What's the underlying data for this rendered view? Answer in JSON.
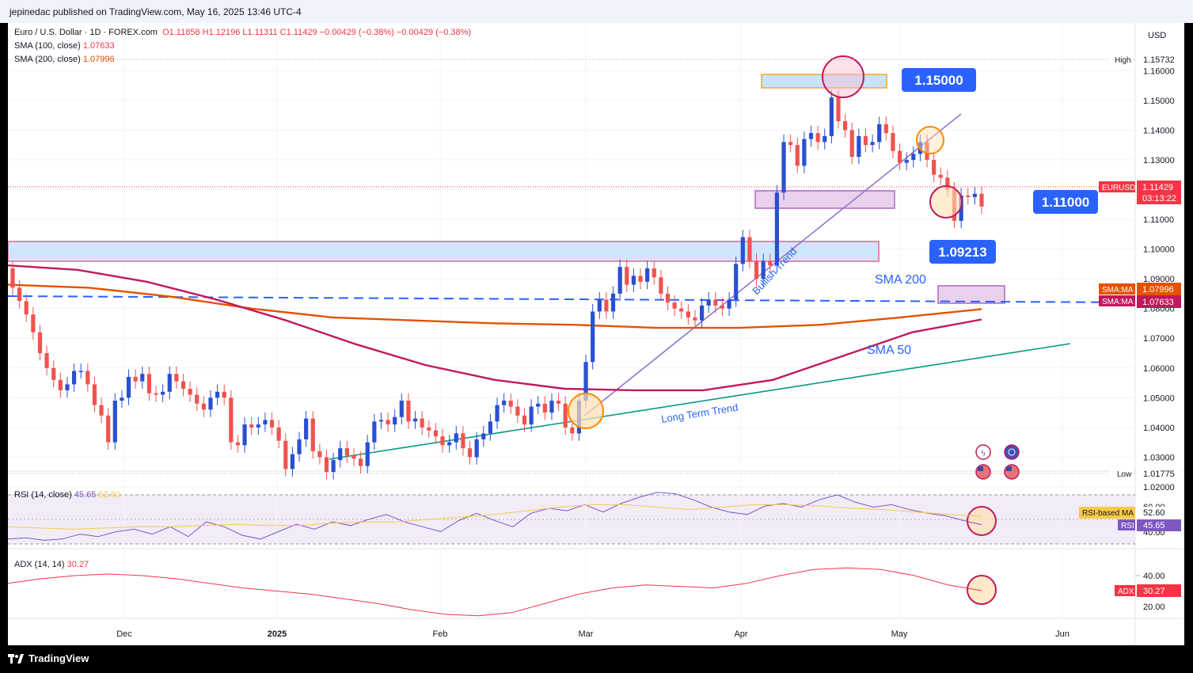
{
  "header": {
    "publisher_line": "jepinedac published on TradingView.com, May 16, 2025 13:46 UTC-4"
  },
  "footer": {
    "brand": "TradingView"
  },
  "legend": {
    "symbol_line_name": "Euro / U.S. Dollar · 1D · FOREX.com",
    "ohlc": "O1.11858  H1.12196  L1.11311  C1.11429  −0.00429 (−0.38%)  −0.00429 (−0.38%)",
    "sma100_label": "SMA (100, close)",
    "sma100_value": "1.07633",
    "sma200_label": "SMA (200, close)",
    "sma200_value": "1.07996",
    "rsi_label": "RSI (14, close)",
    "rsi_value": "45.65",
    "rsi_ma_value": "52.60",
    "adx_label": "ADX (14, 14)",
    "adx_value": "30.27"
  },
  "price_axis": {
    "currency": "USD",
    "ticks": [
      "1.16000",
      "1.15000",
      "1.14000",
      "1.13000",
      "1.12000",
      "1.11000",
      "1.10000",
      "1.09000",
      "1.08000",
      "1.07000",
      "1.06000",
      "1.05000",
      "1.04000",
      "1.03000",
      "1.02000"
    ],
    "high_label": "High",
    "high_value": "1.15732",
    "low_label": "Low",
    "low_value": "1.01775",
    "last_symbol": "EURUSD",
    "last_price": "1.11429",
    "countdown": "03:13:22",
    "sma_tag_1_label": "SMA:MA",
    "sma_tag_1_value": "1.07996",
    "sma_tag_2_label": "SMA:MA",
    "sma_tag_2_value": "1.07633"
  },
  "rsi_axis": {
    "ticks": [
      "60.00",
      "40.00"
    ],
    "ma_tag_label": "RSI-based MA",
    "ma_tag_value": "52.60",
    "rsi_tag_label": "RSI",
    "rsi_tag_value": "45.65"
  },
  "adx_axis": {
    "ticks": [
      "40.00",
      "20.00"
    ],
    "tag_label": "ADX",
    "tag_value": "30.27"
  },
  "time_axis": [
    "Dec",
    "2025",
    "Feb",
    "Mar",
    "Apr",
    "May",
    "Jun"
  ],
  "annotations": {
    "level_1150": "1.15000",
    "level_1110": "1.11000",
    "level_1092": "1.09213",
    "sma200": "SMA 200",
    "sma50": "SMA 50",
    "bullish_trend": "Bullish Trend",
    "long_term_trend": "Long Term Trend"
  },
  "colors": {
    "up": "#2a4fd1",
    "down": "#ef5350",
    "sma200": "#e65100",
    "sma100": "#c2185b",
    "trend_long": "#089981",
    "trend_bull": "#9575cd",
    "label_blue": "#2962ff",
    "rsi_line": "#7e57c2",
    "rsi_ma": "#f7c948",
    "adx": "#f23645"
  },
  "chart_data": {
    "type": "candlestick",
    "symbol": "EURUSD",
    "timeframe": "1D",
    "ylim": [
      1.015,
      1.162
    ],
    "x_months": [
      "Dec",
      "2025",
      "Feb",
      "Mar",
      "Apr",
      "May",
      "Jun"
    ],
    "candles_approx": [
      {
        "o": 1.0935,
        "c": 1.087
      },
      {
        "o": 1.087,
        "c": 1.0825
      },
      {
        "o": 1.0825,
        "c": 1.078
      },
      {
        "o": 1.078,
        "c": 1.072
      },
      {
        "o": 1.072,
        "c": 1.065
      },
      {
        "o": 1.065,
        "c": 1.06
      },
      {
        "o": 1.06,
        "c": 1.056
      },
      {
        "o": 1.056,
        "c": 1.0525
      },
      {
        "o": 1.0525,
        "c": 1.0545
      },
      {
        "o": 1.0545,
        "c": 1.059
      },
      {
        "o": 1.059,
        "c": 1.059
      },
      {
        "o": 1.059,
        "c": 1.0545
      },
      {
        "o": 1.0545,
        "c": 1.0475
      },
      {
        "o": 1.0475,
        "c": 1.044
      },
      {
        "o": 1.044,
        "c": 1.035
      },
      {
        "o": 1.035,
        "c": 1.049
      },
      {
        "o": 1.049,
        "c": 1.05
      },
      {
        "o": 1.05,
        "c": 1.057
      },
      {
        "o": 1.057,
        "c": 1.0555
      },
      {
        "o": 1.0555,
        "c": 1.058
      },
      {
        "o": 1.058,
        "c": 1.0515
      },
      {
        "o": 1.0515,
        "c": 1.051
      },
      {
        "o": 1.051,
        "c": 1.052
      },
      {
        "o": 1.052,
        "c": 1.058
      },
      {
        "o": 1.058,
        "c": 1.0555
      },
      {
        "o": 1.0555,
        "c": 1.053
      },
      {
        "o": 1.053,
        "c": 1.051
      },
      {
        "o": 1.051,
        "c": 1.048
      },
      {
        "o": 1.048,
        "c": 1.046
      },
      {
        "o": 1.046,
        "c": 1.05
      },
      {
        "o": 1.05,
        "c": 1.052
      },
      {
        "o": 1.052,
        "c": 1.05
      },
      {
        "o": 1.05,
        "c": 1.035
      },
      {
        "o": 1.035,
        "c": 1.034
      },
      {
        "o": 1.034,
        "c": 1.041
      },
      {
        "o": 1.041,
        "c": 1.04
      },
      {
        "o": 1.04,
        "c": 1.041
      },
      {
        "o": 1.041,
        "c": 1.0425
      },
      {
        "o": 1.0425,
        "c": 1.04
      },
      {
        "o": 1.04,
        "c": 1.0355
      },
      {
        "o": 1.0355,
        "c": 1.026
      },
      {
        "o": 1.026,
        "c": 1.031
      },
      {
        "o": 1.031,
        "c": 1.036
      },
      {
        "o": 1.036,
        "c": 1.043
      },
      {
        "o": 1.043,
        "c": 1.032
      },
      {
        "o": 1.032,
        "c": 1.03
      },
      {
        "o": 1.03,
        "c": 1.025
      },
      {
        "o": 1.025,
        "c": 1.029
      },
      {
        "o": 1.029,
        "c": 1.033
      },
      {
        "o": 1.033,
        "c": 1.0305
      },
      {
        "o": 1.0305,
        "c": 1.0295
      },
      {
        "o": 1.0295,
        "c": 1.027
      },
      {
        "o": 1.027,
        "c": 1.035
      },
      {
        "o": 1.035,
        "c": 1.042
      },
      {
        "o": 1.042,
        "c": 1.0425
      },
      {
        "o": 1.0425,
        "c": 1.041
      },
      {
        "o": 1.041,
        "c": 1.0435
      },
      {
        "o": 1.0435,
        "c": 1.049
      },
      {
        "o": 1.049,
        "c": 1.042
      },
      {
        "o": 1.042,
        "c": 1.043
      },
      {
        "o": 1.043,
        "c": 1.04
      },
      {
        "o": 1.04,
        "c": 1.039
      },
      {
        "o": 1.039,
        "c": 1.037
      },
      {
        "o": 1.037,
        "c": 1.034
      },
      {
        "o": 1.034,
        "c": 1.035
      },
      {
        "o": 1.035,
        "c": 1.038
      },
      {
        "o": 1.038,
        "c": 1.033
      },
      {
        "o": 1.033,
        "c": 1.03
      },
      {
        "o": 1.03,
        "c": 1.036
      },
      {
        "o": 1.036,
        "c": 1.038
      },
      {
        "o": 1.038,
        "c": 1.042
      },
      {
        "o": 1.042,
        "c": 1.0475
      },
      {
        "o": 1.0475,
        "c": 1.049
      },
      {
        "o": 1.049,
        "c": 1.047
      },
      {
        "o": 1.047,
        "c": 1.044
      },
      {
        "o": 1.044,
        "c": 1.041
      },
      {
        "o": 1.041,
        "c": 1.047
      },
      {
        "o": 1.047,
        "c": 1.048
      },
      {
        "o": 1.048,
        "c": 1.045
      },
      {
        "o": 1.045,
        "c": 1.049
      },
      {
        "o": 1.049,
        "c": 1.048
      },
      {
        "o": 1.048,
        "c": 1.04
      },
      {
        "o": 1.04,
        "c": 1.038
      },
      {
        "o": 1.038,
        "c": 1.049
      },
      {
        "o": 1.049,
        "c": 1.062
      },
      {
        "o": 1.062,
        "c": 1.079
      },
      {
        "o": 1.079,
        "c": 1.083
      },
      {
        "o": 1.083,
        "c": 1.079
      },
      {
        "o": 1.079,
        "c": 1.085
      },
      {
        "o": 1.085,
        "c": 1.094
      },
      {
        "o": 1.094,
        "c": 1.088
      },
      {
        "o": 1.088,
        "c": 1.091
      },
      {
        "o": 1.091,
        "c": 1.089
      },
      {
        "o": 1.089,
        "c": 1.0935
      },
      {
        "o": 1.0935,
        "c": 1.0905
      },
      {
        "o": 1.0905,
        "c": 1.085
      },
      {
        "o": 1.085,
        "c": 1.082
      },
      {
        "o": 1.082,
        "c": 1.08
      },
      {
        "o": 1.08,
        "c": 1.079
      },
      {
        "o": 1.079,
        "c": 1.077
      },
      {
        "o": 1.077,
        "c": 1.076
      },
      {
        "o": 1.076,
        "c": 1.081
      },
      {
        "o": 1.081,
        "c": 1.083
      },
      {
        "o": 1.083,
        "c": 1.081
      },
      {
        "o": 1.081,
        "c": 1.08
      },
      {
        "o": 1.08,
        "c": 1.083
      },
      {
        "o": 1.083,
        "c": 1.095
      },
      {
        "o": 1.095,
        "c": 1.104
      },
      {
        "o": 1.104,
        "c": 1.096
      },
      {
        "o": 1.096,
        "c": 1.09
      },
      {
        "o": 1.09,
        "c": 1.096
      },
      {
        "o": 1.096,
        "c": 1.0945
      },
      {
        "o": 1.0945,
        "c": 1.119
      },
      {
        "o": 1.119,
        "c": 1.136
      },
      {
        "o": 1.136,
        "c": 1.135
      },
      {
        "o": 1.135,
        "c": 1.128
      },
      {
        "o": 1.128,
        "c": 1.137
      },
      {
        "o": 1.137,
        "c": 1.139
      },
      {
        "o": 1.139,
        "c": 1.136
      },
      {
        "o": 1.136,
        "c": 1.138
      },
      {
        "o": 1.138,
        "c": 1.151
      },
      {
        "o": 1.151,
        "c": 1.143
      },
      {
        "o": 1.143,
        "c": 1.14
      },
      {
        "o": 1.14,
        "c": 1.131
      },
      {
        "o": 1.131,
        "c": 1.138
      },
      {
        "o": 1.138,
        "c": 1.135
      },
      {
        "o": 1.135,
        "c": 1.136
      },
      {
        "o": 1.136,
        "c": 1.142
      },
      {
        "o": 1.142,
        "c": 1.139
      },
      {
        "o": 1.139,
        "c": 1.133
      },
      {
        "o": 1.133,
        "c": 1.129
      },
      {
        "o": 1.129,
        "c": 1.13
      },
      {
        "o": 1.13,
        "c": 1.132
      },
      {
        "o": 1.132,
        "c": 1.136
      },
      {
        "o": 1.136,
        "c": 1.13
      },
      {
        "o": 1.13,
        "c": 1.125
      },
      {
        "o": 1.125,
        "c": 1.124
      },
      {
        "o": 1.124,
        "c": 1.12
      },
      {
        "o": 1.12,
        "c": 1.1095
      },
      {
        "o": 1.1095,
        "c": 1.118
      },
      {
        "o": 1.118,
        "c": 1.1175
      },
      {
        "o": 1.1175,
        "c": 1.1186
      },
      {
        "o": 1.1186,
        "c": 1.1143
      }
    ],
    "sma200_approx": [
      1.088,
      1.087,
      1.084,
      1.08,
      1.077,
      1.076,
      1.075,
      1.0745,
      1.0735,
      1.0735,
      1.0745,
      1.077,
      1.0798
    ],
    "sma100_approx": [
      1.0945,
      1.093,
      1.089,
      1.083,
      1.076,
      1.068,
      1.061,
      1.056,
      1.053,
      1.0525,
      1.0525,
      1.056,
      1.064,
      1.072,
      1.0763
    ],
    "horizontal_levels": [
      1.15,
      1.11,
      1.09213,
      1.0785
    ],
    "rsi_approx": [
      34,
      35,
      33,
      34,
      38,
      36,
      40,
      42,
      38,
      44,
      36,
      48,
      44,
      37,
      34,
      40,
      46,
      42,
      48,
      45,
      50,
      54,
      48,
      44,
      40,
      49,
      55,
      49,
      44,
      55,
      59,
      57,
      62,
      56,
      63,
      68,
      72,
      71,
      66,
      60,
      56,
      54,
      61,
      63,
      60,
      66,
      70,
      64,
      60,
      62,
      58,
      55,
      53,
      49,
      45.65
    ],
    "rsi_ma_approx": [
      44,
      43,
      42,
      43,
      44,
      44,
      45,
      46,
      45,
      45,
      47,
      48,
      48,
      50,
      52,
      54,
      57,
      60,
      62,
      62,
      60,
      58,
      60,
      62,
      62,
      61,
      59,
      58,
      56,
      54,
      52.6
    ],
    "adx_approx": [
      35,
      38,
      40,
      41,
      40,
      38,
      35,
      32,
      30,
      28,
      25,
      22,
      18,
      15,
      14,
      16,
      22,
      28,
      32,
      34,
      33,
      32,
      35,
      40,
      44,
      45,
      44,
      40,
      34,
      30.27
    ]
  }
}
